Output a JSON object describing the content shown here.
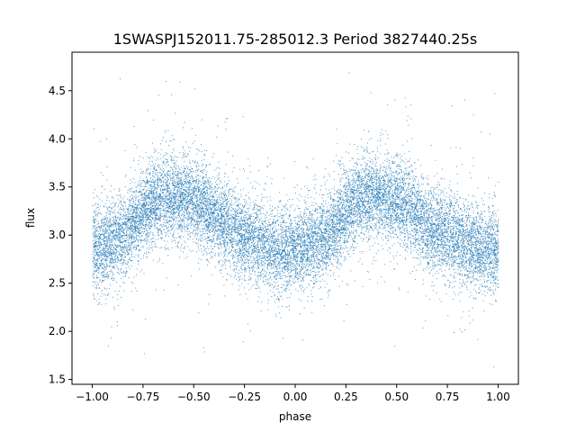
{
  "chart_data": {
    "type": "scatter",
    "title": "1SWASPJ152011.75-285012.3 Period 3827440.25s",
    "xlabel": "phase",
    "ylabel": "flux",
    "xlim": [
      -1.1,
      1.1
    ],
    "ylim": [
      1.45,
      4.9
    ],
    "xticks": [
      -1.0,
      -0.75,
      -0.5,
      -0.25,
      0.0,
      0.25,
      0.5,
      0.75,
      1.0
    ],
    "xtick_labels": [
      "−1.00",
      "−0.75",
      "−0.50",
      "−0.25",
      "0.00",
      "0.25",
      "0.50",
      "0.75",
      "1.00"
    ],
    "yticks": [
      1.5,
      2.0,
      2.5,
      3.0,
      3.5,
      4.0,
      4.5
    ],
    "ytick_labels": [
      "1.5",
      "2.0",
      "2.5",
      "3.0",
      "3.5",
      "4.0",
      "4.5"
    ],
    "grid": false,
    "point_color": "#1f77b4",
    "series": [
      {
        "x_range": [
          -1.0,
          1.0
        ],
        "mean_profile": {
          "phase": [
            0.0,
            0.05,
            0.1,
            0.15,
            0.2,
            0.25,
            0.3,
            0.35,
            0.4,
            0.45,
            0.5,
            0.55,
            0.6,
            0.65,
            0.7,
            0.75,
            0.8,
            0.85,
            0.9,
            0.95,
            1.0
          ],
          "flux": [
            2.85,
            2.9,
            2.95,
            3.0,
            3.1,
            3.25,
            3.35,
            3.4,
            3.4,
            3.38,
            3.35,
            3.3,
            3.2,
            3.1,
            3.05,
            3.0,
            2.95,
            2.9,
            2.85,
            2.85,
            2.85
          ]
        },
        "scatter_sigma": 0.22,
        "flux_extent": [
          1.6,
          4.75
        ],
        "n_points_estimate": 16000
      }
    ]
  }
}
